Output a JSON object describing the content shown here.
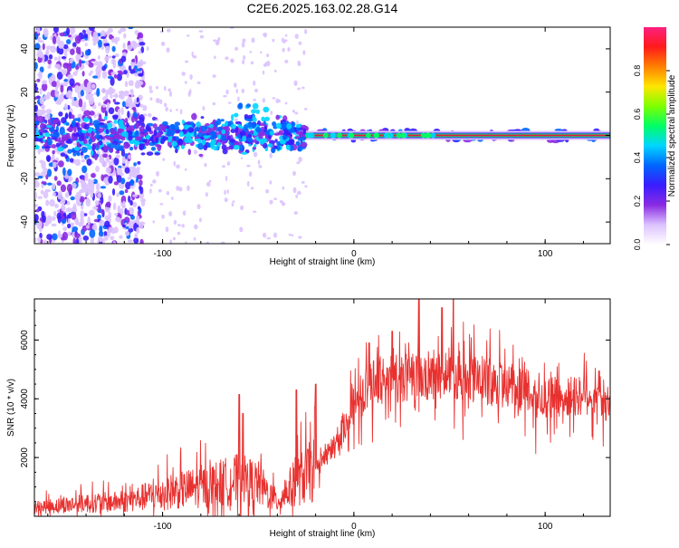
{
  "title": "C2E6.2025.163.02.28.G14",
  "colors": {
    "snr_line": "#e8312f",
    "spectrogram_core": "#e01848",
    "axis": "#000000"
  },
  "colormap": [
    "#ffffff",
    "#dcc3ff",
    "#8a2be2",
    "#3a1cff",
    "#0066ff",
    "#00d5ff",
    "#00ff66",
    "#7dff00",
    "#ffe600",
    "#ff8000",
    "#ff1a1a",
    "#ff2080"
  ],
  "chart_data": [
    {
      "id": "spectrogram",
      "type": "heatmap",
      "xlabel": "Height of straight line (km)",
      "ylabel": "Frequency (Hz)",
      "xlim": [
        -167,
        134
      ],
      "ylim": [
        -50,
        50
      ],
      "xticks": [
        -100,
        0,
        100
      ],
      "yticks": [
        -40,
        -20,
        0,
        20,
        40
      ],
      "description_values": {
        "signal_line_frequency_hz": 0,
        "signal_line_start_km": -25,
        "noise_region_end_km": -110,
        "scatter_region_end_km": -25
      },
      "colorbar": {
        "label": "Normalized spectral amplitude",
        "range": [
          0,
          1
        ],
        "ticks": [
          0.0,
          0.2,
          0.4,
          0.6,
          0.8
        ]
      }
    },
    {
      "id": "snr",
      "type": "line",
      "xlabel": "Height of straight line (km)",
      "ylabel": "SNR (10 * v/v)",
      "xlim": [
        -167,
        134
      ],
      "ylim": [
        0,
        7400
      ],
      "xticks": [
        -100,
        0,
        100
      ],
      "yticks": [
        2000,
        4000,
        6000
      ],
      "series": [
        {
          "envelope_x": [
            -167,
            -140,
            -120,
            -100,
            -80,
            -60,
            -50,
            -40,
            -30,
            -20,
            -10,
            0,
            10,
            20,
            30,
            40,
            50,
            60,
            70,
            80,
            90,
            100,
            110,
            120,
            128,
            134
          ],
          "envelope_y": [
            300,
            450,
            500,
            800,
            1000,
            1250,
            1100,
            500,
            1200,
            1600,
            2400,
            3800,
            4600,
            4700,
            4700,
            4800,
            4900,
            4700,
            4600,
            4500,
            4300,
            4100,
            4000,
            4150,
            4250,
            3700
          ],
          "spikes": [
            {
              "x": -60,
              "y": 4150
            },
            {
              "x": -58,
              "y": 3500
            },
            {
              "x": -30,
              "y": 4300
            },
            {
              "x": -20,
              "y": 4500
            },
            {
              "x": 8,
              "y": 5900
            },
            {
              "x": 20,
              "y": 6300
            },
            {
              "x": 34,
              "y": 7400
            },
            {
              "x": 46,
              "y": 7100
            },
            {
              "x": 52,
              "y": 7400
            }
          ]
        }
      ]
    }
  ]
}
